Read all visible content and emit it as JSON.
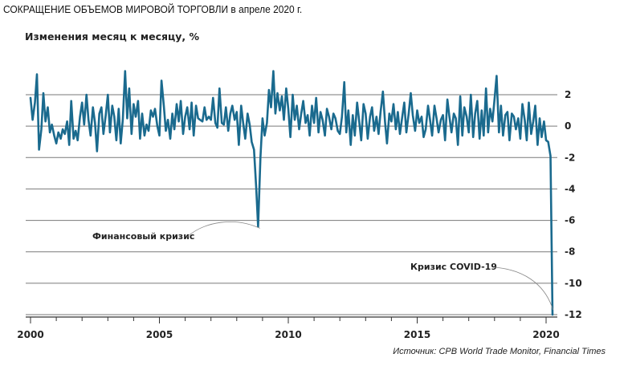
{
  "title": "СОКРАЩЕНИЕ ОБЪЕМОВ МИРОВОЙ ТОРГОВЛИ в апреле 2020 г.",
  "source": "Источник: CPB World Trade Monitor, Financial Times",
  "colors": {
    "line": "#1a6a8e",
    "grid": "#7a7a7a"
  },
  "chart_data": {
    "type": "line",
    "title": "СОКРАЩЕНИЕ ОБЪЕМОВ МИРОВОЙ ТОРГОВЛИ в апреле 2020 г.",
    "ylabel": "Изменения месяц к месяцу, %",
    "xlabel": "",
    "y_axis_side": "right",
    "ylim": [
      -12,
      3.5
    ],
    "xlim": [
      1999.9,
      2020.5
    ],
    "yticks": [
      2,
      0,
      -2,
      -4,
      -6,
      -8,
      -10,
      -12
    ],
    "xticks": [
      2000,
      2005,
      2010,
      2015,
      2020
    ],
    "grid": true,
    "annotations": [
      {
        "text": "Финансовый кризис",
        "x": 2008.9,
        "y": -6.4
      },
      {
        "text": "Кризис COVID-19",
        "x": 2020.33,
        "y": -12
      }
    ],
    "series": [
      {
        "x": [
          2000.0,
          2000.08,
          2000.17,
          2000.25,
          2000.33,
          2000.42,
          2000.5,
          2000.58,
          2000.67,
          2000.75,
          2000.83,
          2000.92,
          2001.0,
          2001.08,
          2001.17,
          2001.25,
          2001.33,
          2001.42,
          2001.5,
          2001.58,
          2001.67,
          2001.75,
          2001.83,
          2001.92,
          2002.0,
          2002.08,
          2002.17,
          2002.25,
          2002.33,
          2002.42,
          2002.5,
          2002.58,
          2002.67,
          2002.75,
          2002.83,
          2002.92,
          2003.0,
          2003.08,
          2003.17,
          2003.25,
          2003.33,
          2003.42,
          2003.5,
          2003.58,
          2003.67,
          2003.75,
          2003.83,
          2003.92,
          2004.0,
          2004.08,
          2004.17,
          2004.25,
          2004.33,
          2004.42,
          2004.5,
          2004.58,
          2004.67,
          2004.75,
          2004.83,
          2004.92,
          2005.0,
          2005.08,
          2005.17,
          2005.25,
          2005.33,
          2005.42,
          2005.5,
          2005.58,
          2005.67,
          2005.75,
          2005.83,
          2005.92,
          2006.0,
          2006.08,
          2006.17,
          2006.25,
          2006.33,
          2006.42,
          2006.5,
          2006.58,
          2006.67,
          2006.75,
          2006.83,
          2006.92,
          2007.0,
          2007.08,
          2007.17,
          2007.25,
          2007.33,
          2007.42,
          2007.5,
          2007.58,
          2007.67,
          2007.75,
          2007.83,
          2007.92,
          2008.0,
          2008.08,
          2008.17,
          2008.25,
          2008.33,
          2008.42,
          2008.5,
          2008.58,
          2008.67,
          2008.75,
          2008.83,
          2008.92,
          2009.0,
          2009.08,
          2009.17,
          2009.25,
          2009.33,
          2009.42,
          2009.5,
          2009.58,
          2009.67,
          2009.75,
          2009.83,
          2009.92,
          2010.0,
          2010.08,
          2010.17,
          2010.25,
          2010.33,
          2010.42,
          2010.5,
          2010.58,
          2010.67,
          2010.75,
          2010.83,
          2010.92,
          2011.0,
          2011.08,
          2011.17,
          2011.25,
          2011.33,
          2011.42,
          2011.5,
          2011.58,
          2011.67,
          2011.75,
          2011.83,
          2011.92,
          2012.0,
          2012.08,
          2012.17,
          2012.25,
          2012.33,
          2012.42,
          2012.5,
          2012.58,
          2012.67,
          2012.75,
          2012.83,
          2012.92,
          2013.0,
          2013.08,
          2013.17,
          2013.25,
          2013.33,
          2013.42,
          2013.5,
          2013.58,
          2013.67,
          2013.75,
          2013.83,
          2013.92,
          2014.0,
          2014.08,
          2014.17,
          2014.25,
          2014.33,
          2014.42,
          2014.5,
          2014.58,
          2014.67,
          2014.75,
          2014.83,
          2014.92,
          2015.0,
          2015.08,
          2015.17,
          2015.25,
          2015.33,
          2015.42,
          2015.5,
          2015.58,
          2015.67,
          2015.75,
          2015.83,
          2015.92,
          2016.0,
          2016.08,
          2016.17,
          2016.25,
          2016.33,
          2016.42,
          2016.5,
          2016.58,
          2016.67,
          2016.75,
          2016.83,
          2016.92,
          2017.0,
          2017.08,
          2017.17,
          2017.25,
          2017.33,
          2017.42,
          2017.5,
          2017.58,
          2017.67,
          2017.75,
          2017.83,
          2017.92,
          2018.0,
          2018.08,
          2018.17,
          2018.25,
          2018.33,
          2018.42,
          2018.5,
          2018.58,
          2018.67,
          2018.75,
          2018.83,
          2018.92,
          2019.0,
          2019.08,
          2019.17,
          2019.25,
          2019.33,
          2019.42,
          2019.5,
          2019.58,
          2019.67,
          2019.75,
          2019.83,
          2019.92,
          2020.0,
          2020.08,
          2020.17,
          2020.25
        ],
        "values": [
          1.8,
          0.4,
          1.5,
          3.3,
          -1.5,
          -0.2,
          2.1,
          0.3,
          1.2,
          -0.4,
          0.1,
          -0.6,
          -1.1,
          -0.4,
          -0.8,
          -0.2,
          -0.5,
          0.3,
          -1.2,
          1.6,
          -0.8,
          -0.3,
          -0.9,
          0.6,
          1.5,
          0.1,
          2.0,
          0.4,
          -0.6,
          1.2,
          0.2,
          -1.6,
          0.8,
          1.2,
          -0.5,
          0.7,
          2.0,
          -0.4,
          1.3,
          0.6,
          -0.9,
          1.1,
          -1.1,
          0.4,
          3.5,
          0.5,
          2.4,
          -0.5,
          1.4,
          0.6,
          1.6,
          -0.8,
          0.8,
          -0.6,
          0.1,
          -0.3,
          1.0,
          0.6,
          1.1,
          0.0,
          -0.6,
          2.9,
          1.3,
          -0.3,
          0.4,
          -0.8,
          0.8,
          -0.2,
          1.4,
          0.3,
          1.6,
          -0.5,
          0.6,
          1.2,
          -0.2,
          1.5,
          -0.6,
          1.3,
          0.5,
          0.4,
          0.3,
          1.2,
          0.4,
          0.6,
          0.4,
          1.8,
          0.2,
          -0.1,
          2.4,
          0.2,
          0.1,
          1.2,
          -0.3,
          0.8,
          1.3,
          0.4,
          0.9,
          -1.2,
          1.3,
          0.2,
          -0.8,
          0.8,
          0.1,
          -1.0,
          -1.5,
          -3.8,
          -6.4,
          -2.0,
          0.5,
          -0.6,
          0.2,
          2.3,
          1.2,
          3.5,
          0.8,
          2.1,
          1.0,
          1.9,
          0.4,
          2.4,
          1.1,
          -0.7,
          2.0,
          0.4,
          1.3,
          -0.2,
          0.8,
          1.6,
          0.2,
          0.7,
          -0.6,
          1.3,
          0.2,
          1.8,
          -0.4,
          0.9,
          0.4,
          -0.6,
          1.1,
          0.6,
          -0.2,
          0.8,
          0.5,
          -0.3,
          -0.5,
          0.6,
          2.8,
          -0.4,
          1.0,
          -1.2,
          0.7,
          -0.6,
          1.5,
          0.3,
          -0.9,
          1.4,
          0.8,
          -0.8,
          0.6,
          1.2,
          -0.3,
          0.6,
          -0.5,
          0.9,
          2.2,
          0.3,
          -1.1,
          0.8,
          0.3,
          1.4,
          -0.2,
          0.9,
          -0.5,
          0.6,
          1.5,
          -0.4,
          0.8,
          2.1,
          0.7,
          -0.3,
          1.0,
          0.2,
          0.6,
          -0.7,
          -0.2,
          1.3,
          0.4,
          -0.6,
          1.3,
          0.5,
          -0.4,
          0.4,
          0.7,
          -0.9,
          1.7,
          0.6,
          -0.4,
          0.8,
          0.5,
          -1.2,
          1.9,
          -0.6,
          1.2,
          0.6,
          -0.4,
          2.0,
          -0.7,
          0.8,
          1.6,
          -0.8,
          1.0,
          -0.6,
          2.4,
          -0.4,
          1.1,
          0.3,
          1.7,
          3.2,
          -0.4,
          1.3,
          -0.6,
          0.7,
          0.9,
          -0.9,
          0.8,
          0.6,
          -0.2,
          0.5,
          -0.8,
          1.4,
          0.4,
          -0.9,
          1.5,
          -0.5,
          0.3,
          1.3,
          -1.2,
          0.5,
          -0.7,
          0.3,
          -0.9,
          -1.0,
          -1.9,
          -12.0
        ]
      }
    ]
  }
}
